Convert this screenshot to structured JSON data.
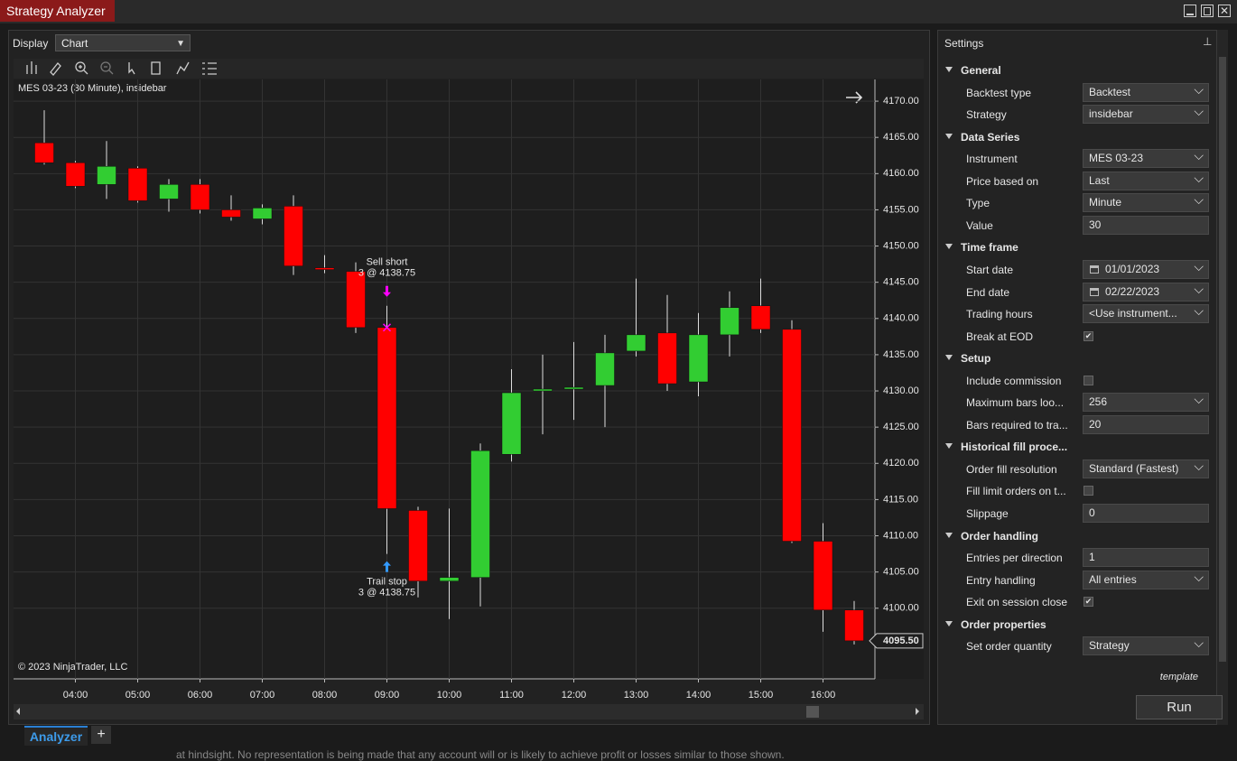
{
  "window": {
    "title": "Strategy Analyzer"
  },
  "display": {
    "label": "Display",
    "value": "Chart"
  },
  "chart_data": {
    "type": "candlestick",
    "title": "MES 03-23 (30 Minute), insidebar",
    "categories": [
      null,
      "04:00",
      null,
      "05:00",
      null,
      "06:00",
      null,
      "07:00",
      null,
      "08:00",
      null,
      "09:00",
      null,
      "10:00",
      null,
      "11:00",
      null,
      "12:00",
      null,
      "13:00",
      null,
      "14:00",
      null,
      "15:00",
      null,
      "16:00",
      null
    ],
    "open": [
      4164.25,
      4161.5,
      4158.5,
      4160.75,
      4156.5,
      4158.5,
      4155,
      4153.75,
      4155.5,
      4147,
      4146.5,
      4138.75,
      4113.5,
      4103.75,
      4104.25,
      4121.25,
      4130,
      4130.25,
      4130.75,
      4135.5,
      4138,
      4131.25,
      4137.75,
      4141.75,
      4138.5,
      4109.25,
      4099.75
    ],
    "high": [
      4168.75,
      4161.75,
      4164.5,
      4161,
      4159.25,
      4159.25,
      4157,
      4155.75,
      4157,
      4148.75,
      4147.75,
      4141.75,
      4114,
      4113.75,
      4122.75,
      4133,
      4135,
      4136.75,
      4137.75,
      4145.5,
      4143.25,
      4140.75,
      4143.75,
      4145.5,
      4139.75,
      4111.75,
      4101
    ],
    "low": [
      4161.25,
      4158,
      4156.5,
      4156,
      4154.75,
      4154.5,
      4153.5,
      4153,
      4146,
      4146.25,
      4138,
      4107.5,
      4101.5,
      4098.5,
      4100.25,
      4120.25,
      4124,
      4126,
      4125,
      4134.75,
      4130,
      4129.25,
      4134.75,
      4138,
      4109,
      4096.75,
      4095
    ],
    "close": [
      4161.5,
      4158.25,
      4161,
      4156.25,
      4158.5,
      4155,
      4154,
      4155.25,
      4147.25,
      4146.75,
      4138.75,
      4113.75,
      4103.75,
      4104.25,
      4121.75,
      4129.75,
      4130.25,
      4130.5,
      4135.25,
      4137.75,
      4131,
      4137.75,
      4141.5,
      4138.5,
      4109.25,
      4099.75,
      4095.5
    ],
    "up_color": "#32cd32",
    "down_color": "#ff0000",
    "ylim": [
      4090.25,
      4173
    ],
    "yticks": [
      {
        "value": 4100,
        "label": "4100.00"
      },
      {
        "value": 4105,
        "label": "4105.00"
      },
      {
        "value": 4110,
        "label": "4110.00"
      },
      {
        "value": 4115,
        "label": "4115.00"
      },
      {
        "value": 4120,
        "label": "4120.00"
      },
      {
        "value": 4125,
        "label": "4125.00"
      },
      {
        "value": 4130,
        "label": "4130.00"
      },
      {
        "value": 4135,
        "label": "4135.00"
      },
      {
        "value": 4140,
        "label": "4140.00"
      },
      {
        "value": 4145,
        "label": "4145.00"
      },
      {
        "value": 4150,
        "label": "4150.00"
      },
      {
        "value": 4155,
        "label": "4155.00"
      },
      {
        "value": 4160,
        "label": "4160.00"
      },
      {
        "value": 4165,
        "label": "4165.00"
      },
      {
        "value": 4170,
        "label": "4170.00"
      }
    ],
    "grid": true,
    "last_price": {
      "value": 4095.5,
      "label": "4095.50"
    },
    "annotations": [
      {
        "label": "Sell short",
        "text": "3 @ 4138.75"
      },
      {
        "label": "Trail stop",
        "text": "3 @ 4138.75"
      }
    ],
    "copyright": "© 2023 NinjaTrader, LLC"
  },
  "settings": {
    "title": "Settings",
    "template": "template",
    "run": "Run",
    "sections": [
      {
        "name": "General",
        "rows": [
          {
            "label": "Backtest type",
            "value": "Backtest",
            "kind": "select"
          },
          {
            "label": "Strategy",
            "value": "insidebar",
            "kind": "select"
          }
        ]
      },
      {
        "name": "Data Series",
        "rows": [
          {
            "label": "Instrument",
            "value": "MES 03-23",
            "kind": "select"
          },
          {
            "label": "Price based on",
            "value": "Last",
            "kind": "select"
          },
          {
            "label": "Type",
            "value": "Minute",
            "kind": "select"
          },
          {
            "label": "Value",
            "value": "30",
            "kind": "text"
          }
        ]
      },
      {
        "name": "Time frame",
        "rows": [
          {
            "label": "Start date",
            "value": "01/01/2023",
            "kind": "date"
          },
          {
            "label": "End date",
            "value": "02/22/2023",
            "kind": "date"
          },
          {
            "label": "Trading hours",
            "value": "<Use instrument...",
            "kind": "select"
          },
          {
            "label": "Break at EOD",
            "checked": true,
            "kind": "check"
          }
        ]
      },
      {
        "name": "Setup",
        "rows": [
          {
            "label": "Include commission",
            "checked": false,
            "kind": "check"
          },
          {
            "label": "Maximum bars loo...",
            "value": "256",
            "kind": "select"
          },
          {
            "label": "Bars required to tra...",
            "value": "20",
            "kind": "text"
          }
        ]
      },
      {
        "name": "Historical fill proce...",
        "rows": [
          {
            "label": "Order fill resolution",
            "value": "Standard (Fastest)",
            "kind": "select"
          },
          {
            "label": "Fill limit orders on t...",
            "checked": false,
            "kind": "check"
          },
          {
            "label": "Slippage",
            "value": "0",
            "kind": "text"
          }
        ]
      },
      {
        "name": "Order handling",
        "rows": [
          {
            "label": "Entries per direction",
            "value": "1",
            "kind": "text"
          },
          {
            "label": "Entry handling",
            "value": "All entries",
            "kind": "select"
          },
          {
            "label": "Exit on session close",
            "checked": true,
            "kind": "check"
          }
        ]
      },
      {
        "name": "Order properties",
        "rows": [
          {
            "label": "Set order quantity",
            "value": "Strategy",
            "kind": "select"
          }
        ]
      }
    ]
  },
  "tabs": {
    "active": "Analyzer",
    "add": "+"
  },
  "footer_text": "at hindsight. No representation is being made that any account will or is likely to achieve profit or losses similar to those shown."
}
